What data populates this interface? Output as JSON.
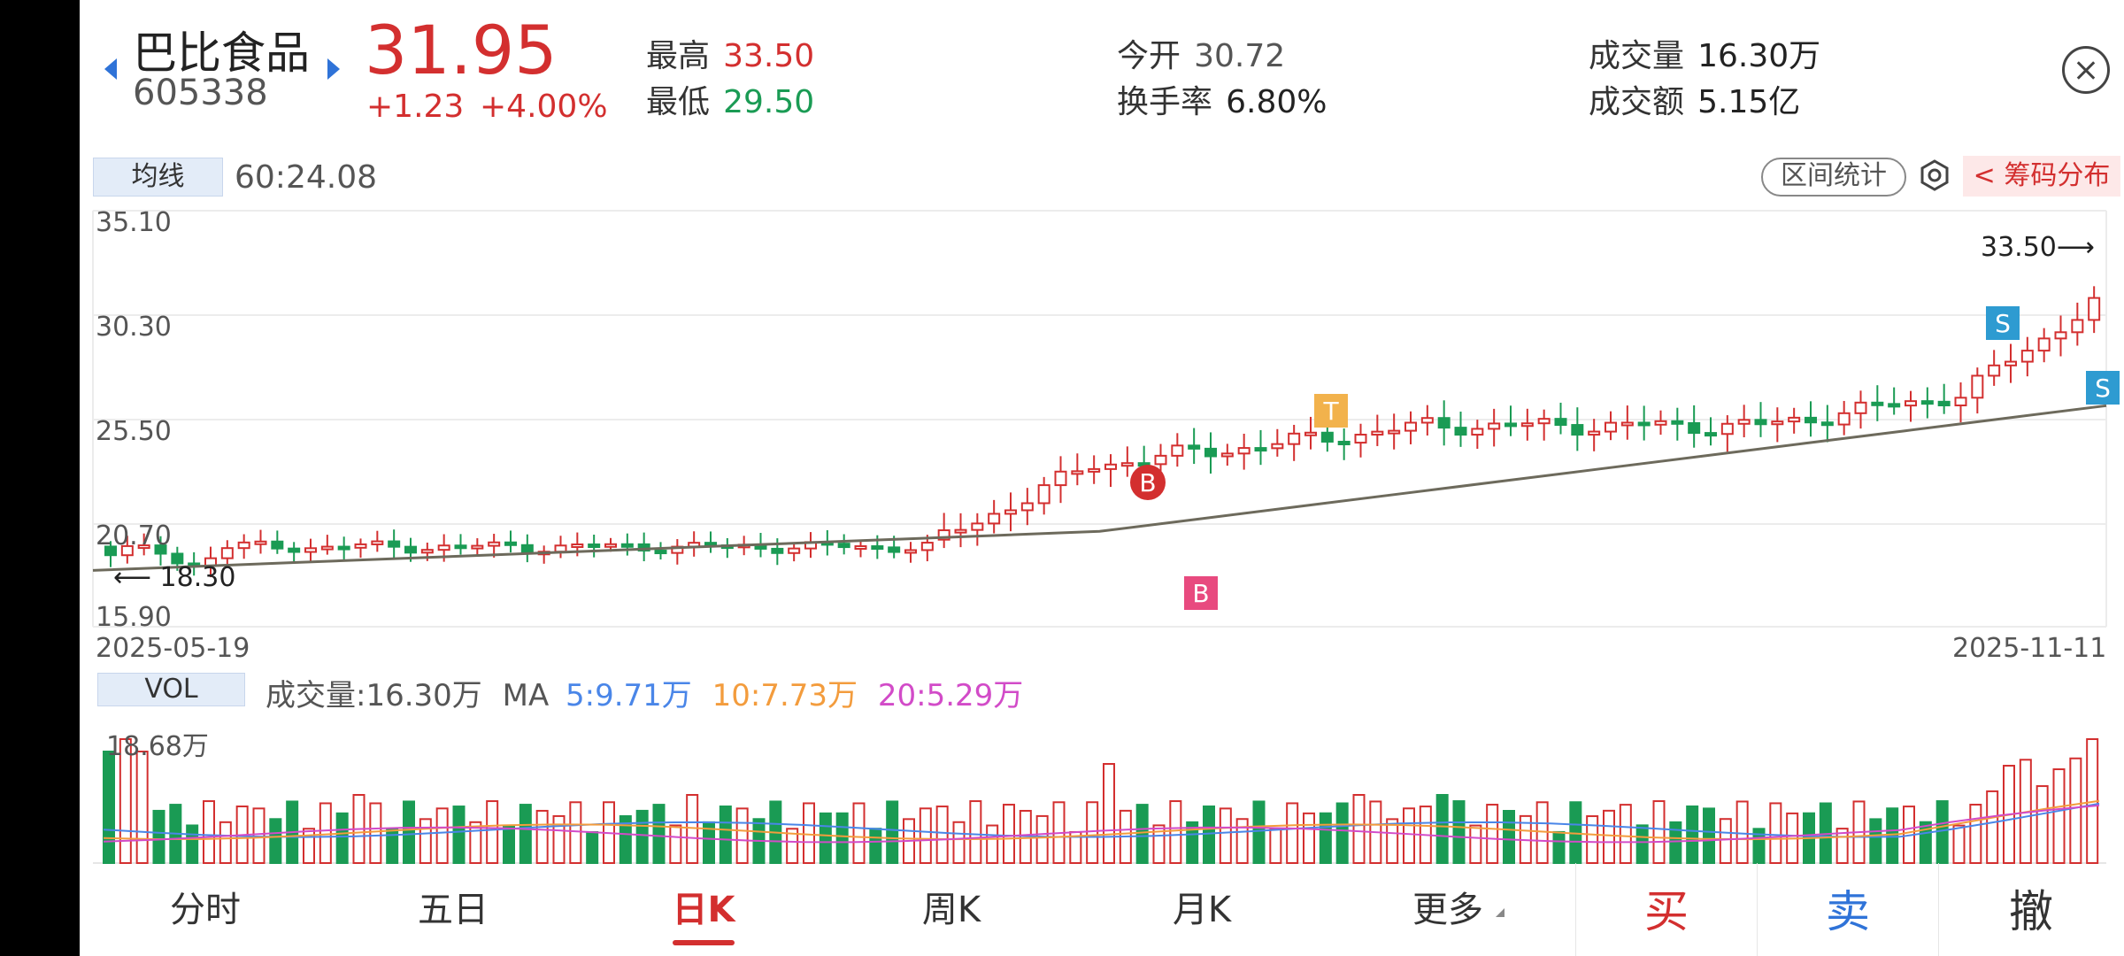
{
  "header": {
    "stock_name": "巴比食品",
    "stock_code": "605338",
    "price": "31.95",
    "change": "+1.23",
    "change_pct": "+4.00%",
    "stats": [
      {
        "label": "最高",
        "value": "33.50",
        "color": "red"
      },
      {
        "label": "最低",
        "value": "29.50",
        "color": "green"
      },
      {
        "label": "今开",
        "value": "30.72",
        "color": "gray"
      },
      {
        "label": "换手率",
        "value": "6.80%",
        "color": "dark"
      },
      {
        "label": "成交量",
        "value": "16.30万",
        "color": "dark"
      },
      {
        "label": "成交额",
        "value": "5.15亿",
        "color": "dark"
      }
    ]
  },
  "kline": {
    "ma_chip": "均线",
    "ma_value": "60:24.08",
    "range_stats_button": "区间统计",
    "chip_dist_button": "< 筹码分布",
    "y_ticks": [
      "35.10",
      "30.30",
      "25.50",
      "20.70",
      "15.90"
    ],
    "start_date": "2025-05-19",
    "end_date": "2025-11-11",
    "max_label": "33.50⟶",
    "min_label": "⟵ 18.30",
    "signals": [
      {
        "label": "B",
        "color": "#d32f2f"
      },
      {
        "label": "B",
        "color": "#e84a7f"
      },
      {
        "label": "T",
        "color": "#f2b24c"
      },
      {
        "label": "S",
        "color": "#2e9bd1"
      },
      {
        "label": "S",
        "color": "#2e9bd1"
      }
    ]
  },
  "volume": {
    "chip": "VOL",
    "volume_text": "成交量:16.30万",
    "ma_prefix": "MA",
    "ma5": "5:9.71万",
    "ma10": "10:7.73万",
    "ma20": "20:5.29万",
    "max_label": "18.68万",
    "colors": {
      "ma5": "#4a86e8",
      "ma10": "#f39c3d",
      "ma20": "#d24bc8",
      "up": "#d32f2f",
      "down": "#1a9b54"
    }
  },
  "tabs": [
    "分时",
    "五日",
    "日K",
    "周K",
    "月K",
    "更多"
  ],
  "active_tab": "日K",
  "trade": {
    "buy": "买",
    "sell": "卖",
    "cancel": "撤"
  }
}
